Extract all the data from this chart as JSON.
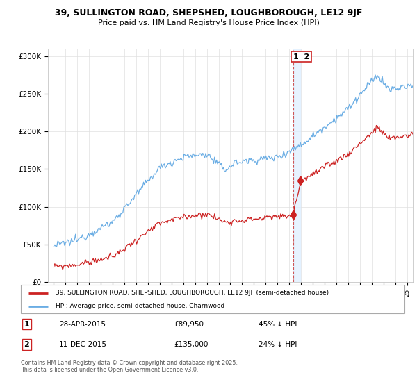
{
  "title_line1": "39, SULLINGTON ROAD, SHEPSHED, LOUGHBOROUGH, LE12 9JF",
  "title_line2": "Price paid vs. HM Land Registry's House Price Index (HPI)",
  "hpi_color": "#6aade4",
  "price_color": "#cc2222",
  "dashed_color": "#cc4444",
  "shade_color": "#ddeeff",
  "grid_color": "#e0e0e0",
  "legend_label1": "39, SULLINGTON ROAD, SHEPSHED, LOUGHBOROUGH, LE12 9JF (semi-detached house)",
  "legend_label2": "HPI: Average price, semi-detached house, Charnwood",
  "annotation1_date": "28-APR-2015",
  "annotation1_price": "£89,950",
  "annotation1_hpi": "45% ↓ HPI",
  "annotation1_year": 2015.32,
  "annotation1_value": 89950,
  "annotation2_date": "11-DEC-2015",
  "annotation2_price": "£135,000",
  "annotation2_hpi": "24% ↓ HPI",
  "annotation2_year": 2015.95,
  "annotation2_value": 135000,
  "footer": "Contains HM Land Registry data © Crown copyright and database right 2025.\nThis data is licensed under the Open Government Licence v3.0.",
  "ylim_max": 310000,
  "ylim_min": 0,
  "xlim_min": 1994.5,
  "xlim_max": 2025.5,
  "shade_xmin": 2015.32,
  "shade_xmax": 2015.95
}
